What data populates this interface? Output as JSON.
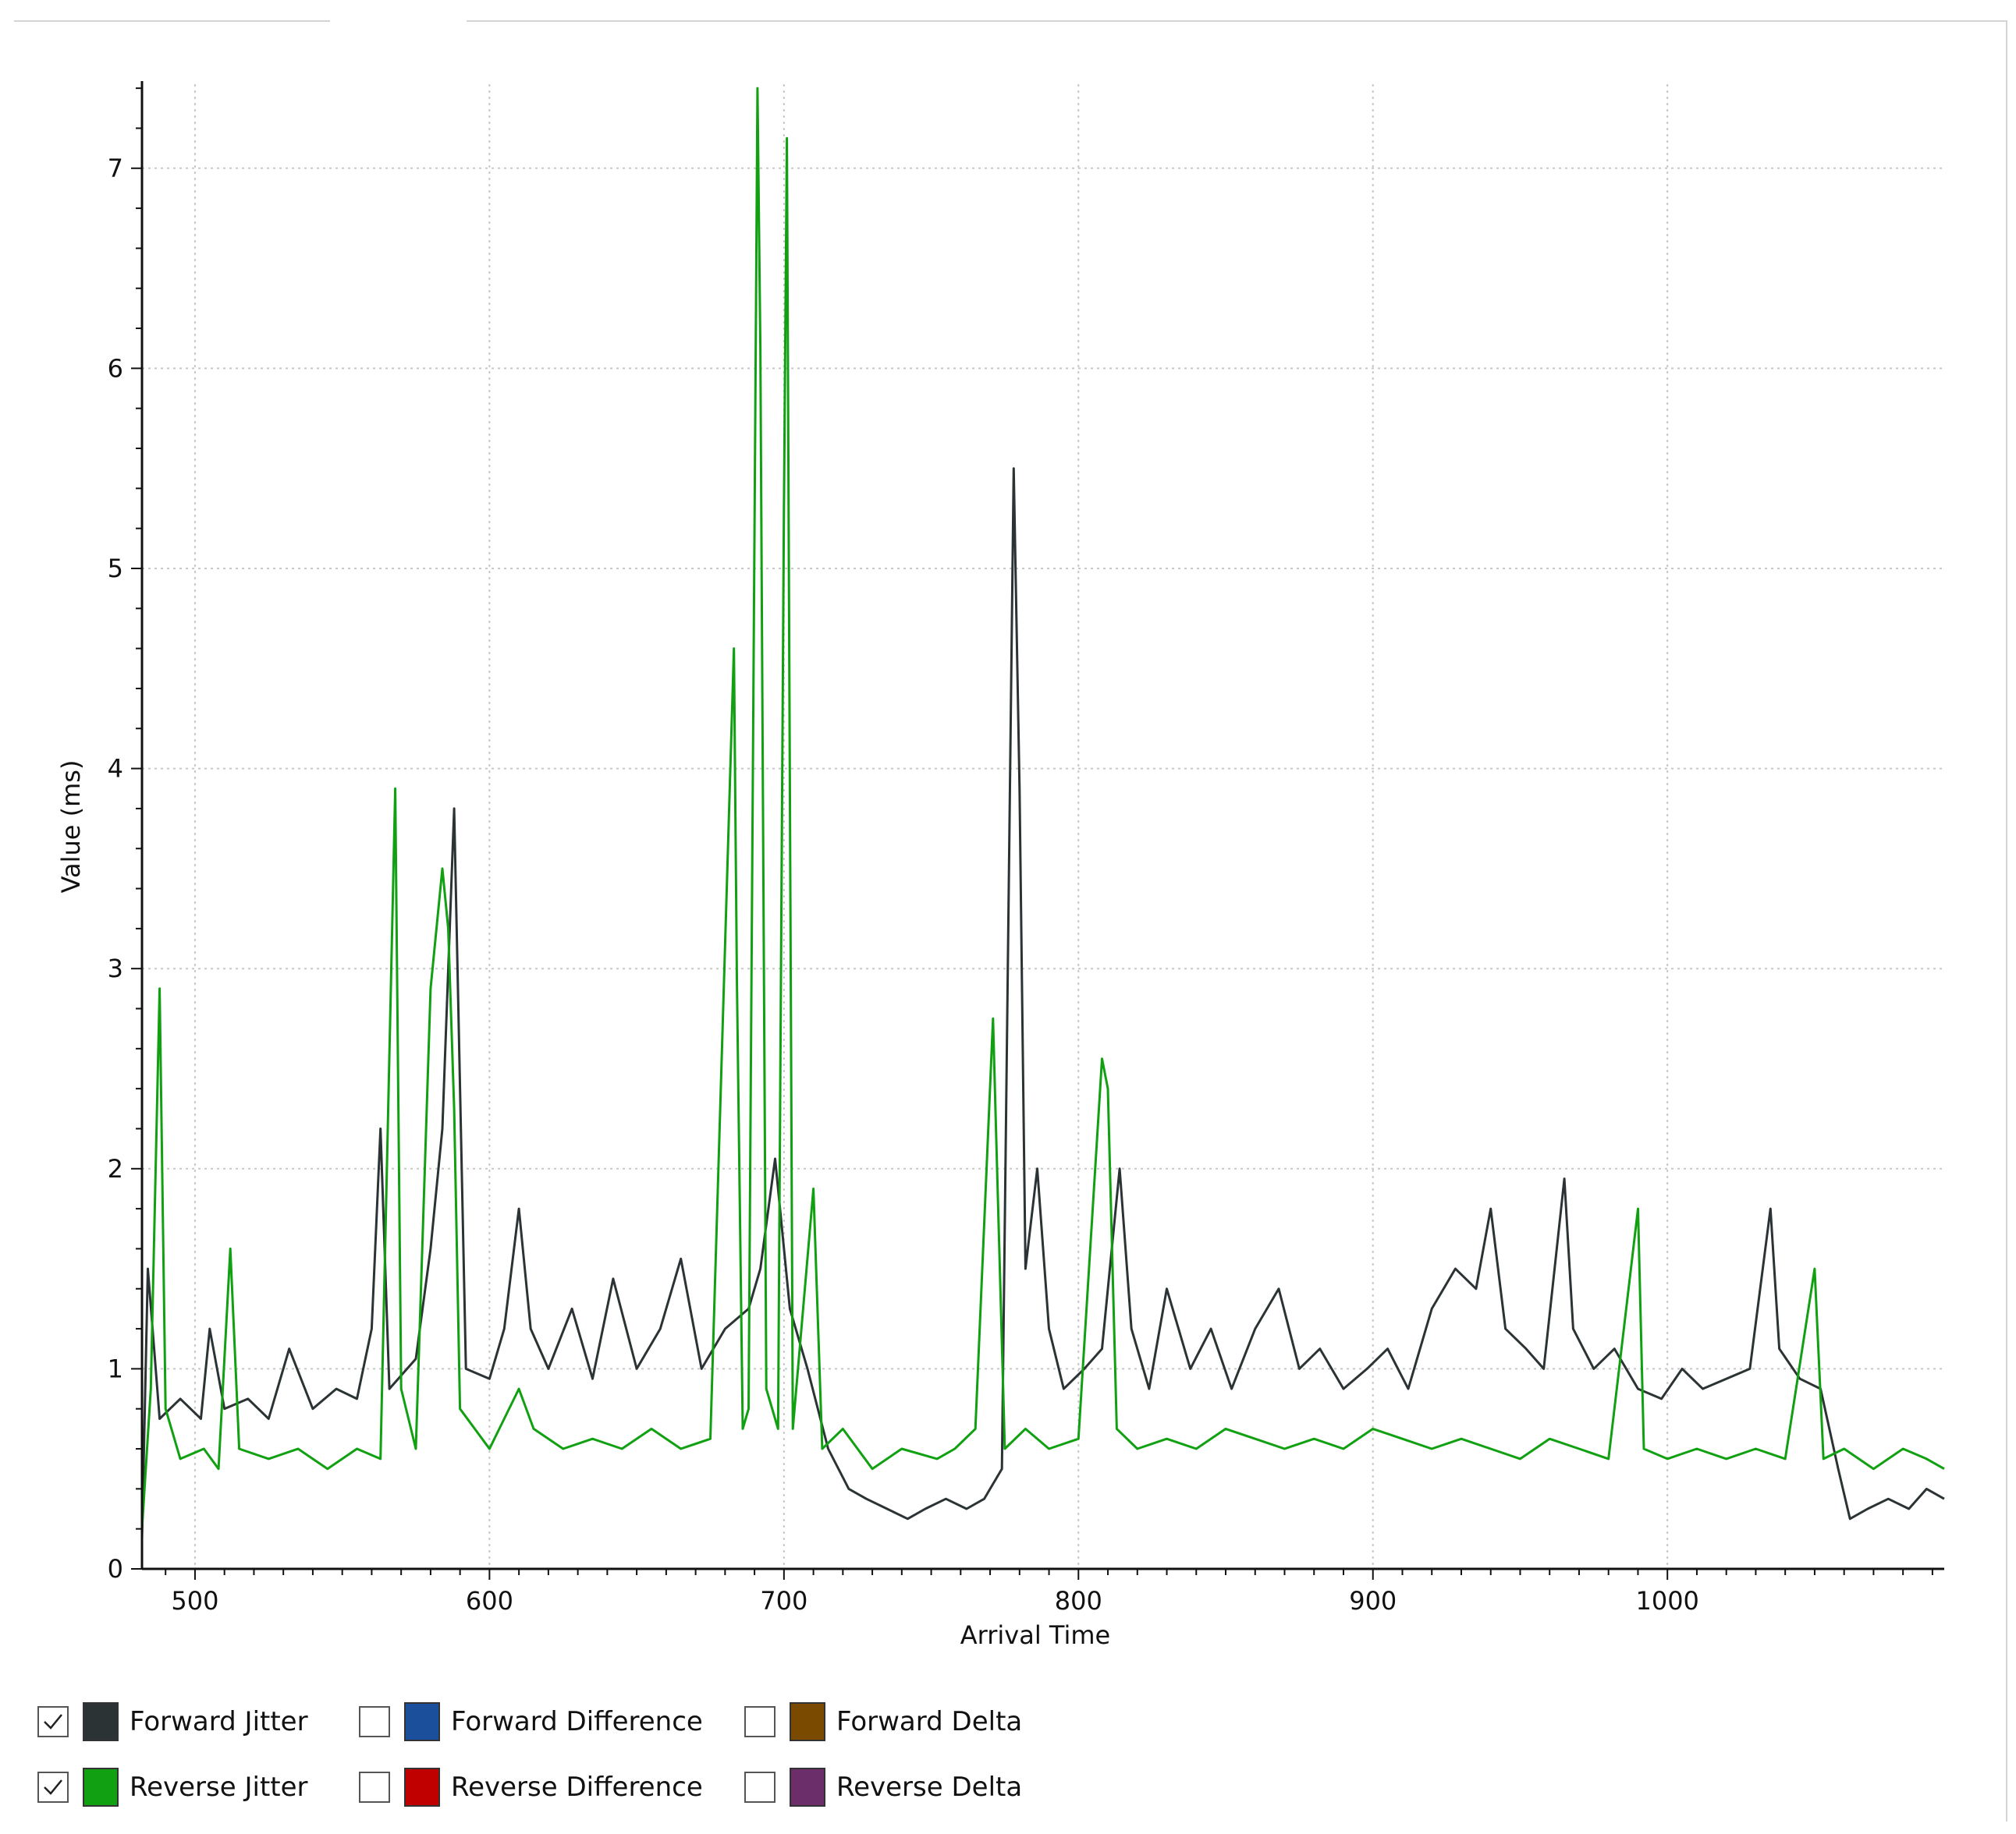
{
  "chart_data": {
    "type": "line",
    "title": "",
    "xlabel": "Arrival Time",
    "ylabel": "Value (ms)",
    "xlim": [
      482,
      1094
    ],
    "ylim": [
      0,
      7.42
    ],
    "x_ticks": [
      500,
      600,
      700,
      800,
      900,
      1000
    ],
    "y_ticks": [
      0,
      1,
      2,
      3,
      4,
      5,
      6,
      7
    ],
    "grid": true,
    "legend_position": "bottom",
    "series": [
      {
        "name": "Forward Jitter",
        "color": "#2b3335",
        "checked": true,
        "points": [
          [
            482,
            0.15
          ],
          [
            484,
            1.5
          ],
          [
            488,
            0.75
          ],
          [
            495,
            0.85
          ],
          [
            502,
            0.75
          ],
          [
            505,
            1.2
          ],
          [
            510,
            0.8
          ],
          [
            518,
            0.85
          ],
          [
            525,
            0.75
          ],
          [
            532,
            1.1
          ],
          [
            540,
            0.8
          ],
          [
            548,
            0.9
          ],
          [
            555,
            0.85
          ],
          [
            560,
            1.2
          ],
          [
            563,
            2.2
          ],
          [
            566,
            0.9
          ],
          [
            575,
            1.05
          ],
          [
            580,
            1.6
          ],
          [
            584,
            2.2
          ],
          [
            588,
            3.8
          ],
          [
            592,
            1.0
          ],
          [
            600,
            0.95
          ],
          [
            605,
            1.2
          ],
          [
            610,
            1.8
          ],
          [
            614,
            1.2
          ],
          [
            620,
            1.0
          ],
          [
            628,
            1.3
          ],
          [
            635,
            0.95
          ],
          [
            642,
            1.45
          ],
          [
            650,
            1.0
          ],
          [
            658,
            1.2
          ],
          [
            665,
            1.55
          ],
          [
            672,
            1.0
          ],
          [
            680,
            1.2
          ],
          [
            688,
            1.3
          ],
          [
            692,
            1.5
          ],
          [
            697,
            2.05
          ],
          [
            702,
            1.3
          ],
          [
            708,
            1.0
          ],
          [
            715,
            0.6
          ],
          [
            722,
            0.4
          ],
          [
            728,
            0.35
          ],
          [
            735,
            0.3
          ],
          [
            742,
            0.25
          ],
          [
            748,
            0.3
          ],
          [
            755,
            0.35
          ],
          [
            762,
            0.3
          ],
          [
            768,
            0.35
          ],
          [
            774,
            0.5
          ],
          [
            778,
            5.5
          ],
          [
            780,
            3.9
          ],
          [
            782,
            1.5
          ],
          [
            786,
            2.0
          ],
          [
            790,
            1.2
          ],
          [
            795,
            0.9
          ],
          [
            802,
            1.0
          ],
          [
            808,
            1.1
          ],
          [
            814,
            2.0
          ],
          [
            818,
            1.2
          ],
          [
            824,
            0.9
          ],
          [
            830,
            1.4
          ],
          [
            838,
            1.0
          ],
          [
            845,
            1.2
          ],
          [
            852,
            0.9
          ],
          [
            860,
            1.2
          ],
          [
            868,
            1.4
          ],
          [
            875,
            1.0
          ],
          [
            882,
            1.1
          ],
          [
            890,
            0.9
          ],
          [
            898,
            1.0
          ],
          [
            905,
            1.1
          ],
          [
            912,
            0.9
          ],
          [
            920,
            1.3
          ],
          [
            928,
            1.5
          ],
          [
            935,
            1.4
          ],
          [
            940,
            1.8
          ],
          [
            945,
            1.2
          ],
          [
            952,
            1.1
          ],
          [
            958,
            1.0
          ],
          [
            965,
            1.95
          ],
          [
            968,
            1.2
          ],
          [
            975,
            1.0
          ],
          [
            982,
            1.1
          ],
          [
            990,
            0.9
          ],
          [
            998,
            0.85
          ],
          [
            1005,
            1.0
          ],
          [
            1012,
            0.9
          ],
          [
            1020,
            0.95
          ],
          [
            1028,
            1.0
          ],
          [
            1035,
            1.8
          ],
          [
            1038,
            1.1
          ],
          [
            1045,
            0.95
          ],
          [
            1052,
            0.9
          ],
          [
            1058,
            0.5
          ],
          [
            1062,
            0.25
          ],
          [
            1068,
            0.3
          ],
          [
            1075,
            0.35
          ],
          [
            1082,
            0.3
          ],
          [
            1088,
            0.4
          ],
          [
            1094,
            0.35
          ]
        ]
      },
      {
        "name": "Reverse Jitter",
        "color": "#11a011",
        "checked": true,
        "points": [
          [
            482,
            0.2
          ],
          [
            485,
            0.9
          ],
          [
            488,
            2.9
          ],
          [
            490,
            0.8
          ],
          [
            495,
            0.55
          ],
          [
            503,
            0.6
          ],
          [
            508,
            0.5
          ],
          [
            512,
            1.6
          ],
          [
            515,
            0.6
          ],
          [
            525,
            0.55
          ],
          [
            535,
            0.6
          ],
          [
            545,
            0.5
          ],
          [
            555,
            0.6
          ],
          [
            563,
            0.55
          ],
          [
            568,
            3.9
          ],
          [
            570,
            0.9
          ],
          [
            575,
            0.6
          ],
          [
            580,
            2.9
          ],
          [
            584,
            3.5
          ],
          [
            586,
            3.2
          ],
          [
            588,
            2.3
          ],
          [
            590,
            0.8
          ],
          [
            600,
            0.6
          ],
          [
            610,
            0.9
          ],
          [
            615,
            0.7
          ],
          [
            625,
            0.6
          ],
          [
            635,
            0.65
          ],
          [
            645,
            0.6
          ],
          [
            655,
            0.7
          ],
          [
            665,
            0.6
          ],
          [
            675,
            0.65
          ],
          [
            683,
            4.6
          ],
          [
            684,
            2.95
          ],
          [
            686,
            0.7
          ],
          [
            688,
            0.8
          ],
          [
            691,
            7.4
          ],
          [
            692,
            6.1
          ],
          [
            694,
            0.9
          ],
          [
            698,
            0.7
          ],
          [
            700,
            5.3
          ],
          [
            701,
            7.15
          ],
          [
            703,
            0.7
          ],
          [
            710,
            1.9
          ],
          [
            713,
            0.6
          ],
          [
            720,
            0.7
          ],
          [
            730,
            0.5
          ],
          [
            740,
            0.6
          ],
          [
            752,
            0.55
          ],
          [
            758,
            0.6
          ],
          [
            765,
            0.7
          ],
          [
            771,
            2.75
          ],
          [
            772,
            2.2
          ],
          [
            775,
            0.6
          ],
          [
            782,
            0.7
          ],
          [
            790,
            0.6
          ],
          [
            800,
            0.65
          ],
          [
            808,
            2.55
          ],
          [
            810,
            2.4
          ],
          [
            813,
            0.7
          ],
          [
            820,
            0.6
          ],
          [
            830,
            0.65
          ],
          [
            840,
            0.6
          ],
          [
            850,
            0.7
          ],
          [
            860,
            0.65
          ],
          [
            870,
            0.6
          ],
          [
            880,
            0.65
          ],
          [
            890,
            0.6
          ],
          [
            900,
            0.7
          ],
          [
            910,
            0.65
          ],
          [
            920,
            0.6
          ],
          [
            930,
            0.65
          ],
          [
            940,
            0.6
          ],
          [
            950,
            0.55
          ],
          [
            960,
            0.65
          ],
          [
            970,
            0.6
          ],
          [
            980,
            0.55
          ],
          [
            990,
            1.8
          ],
          [
            992,
            0.6
          ],
          [
            1000,
            0.55
          ],
          [
            1010,
            0.6
          ],
          [
            1020,
            0.55
          ],
          [
            1030,
            0.6
          ],
          [
            1040,
            0.55
          ],
          [
            1050,
            1.5
          ],
          [
            1053,
            0.55
          ],
          [
            1060,
            0.6
          ],
          [
            1070,
            0.5
          ],
          [
            1080,
            0.6
          ],
          [
            1088,
            0.55
          ],
          [
            1094,
            0.5
          ]
        ]
      },
      {
        "name": "Forward Difference",
        "color": "#1b4f9b",
        "checked": false,
        "points": []
      },
      {
        "name": "Reverse Difference",
        "color": "#c00000",
        "checked": false,
        "points": []
      },
      {
        "name": "Forward Delta",
        "color": "#7a4a00",
        "checked": false,
        "points": []
      },
      {
        "name": "Reverse Delta",
        "color": "#6b2e6b",
        "checked": false,
        "points": []
      }
    ]
  },
  "legend": {
    "items": [
      {
        "label": "Forward Jitter",
        "checked": true,
        "color": "#2b3335"
      },
      {
        "label": "Forward Difference",
        "checked": false,
        "color": "#1b4f9b"
      },
      {
        "label": "Forward Delta",
        "checked": false,
        "color": "#7a4a00"
      },
      {
        "label": "Reverse Jitter",
        "checked": true,
        "color": "#11a011"
      },
      {
        "label": "Reverse Difference",
        "checked": false,
        "color": "#c00000"
      },
      {
        "label": "Reverse Delta",
        "checked": false,
        "color": "#6b2e6b"
      }
    ]
  }
}
